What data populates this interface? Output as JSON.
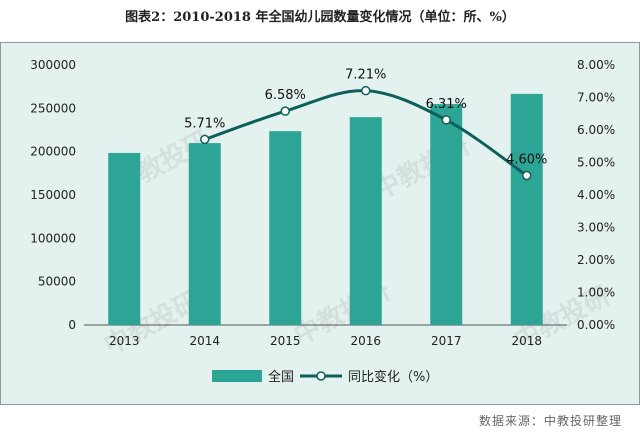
{
  "title": "图表2：2010-2018 年全国幼儿园数量变化情况（单位：所、%）",
  "source": "数据来源：中教投研整理",
  "watermark": "中教投研",
  "colors": {
    "bar": "#2da596",
    "line": "#0e5f5b",
    "background": "#e4f2ef"
  },
  "chart_data": {
    "type": "bar",
    "categories": [
      "2013",
      "2014",
      "2015",
      "2016",
      "2017",
      "2018"
    ],
    "series": [
      {
        "name": "全国",
        "type": "bar",
        "axis": "left",
        "values": [
          198553,
          209881,
          223683,
          239812,
          254950,
          266677
        ]
      },
      {
        "name": "同比变化（%）",
        "type": "line",
        "axis": "right",
        "values": [
          null,
          5.71,
          6.58,
          7.21,
          6.31,
          4.6
        ],
        "labels": [
          "",
          "5.71%",
          "6.58%",
          "7.21%",
          "6.31%",
          "4.60%"
        ]
      }
    ],
    "y_left": {
      "min": 0,
      "max": 300000,
      "ticks": [
        "0",
        "50000",
        "100000",
        "150000",
        "200000",
        "250000",
        "300000"
      ]
    },
    "y_right": {
      "min": 0,
      "max": 8,
      "ticks": [
        "0.00%",
        "1.00%",
        "2.00%",
        "3.00%",
        "4.00%",
        "5.00%",
        "6.00%",
        "7.00%",
        "8.00%"
      ]
    },
    "legend_position": "bottom",
    "grid": false
  }
}
